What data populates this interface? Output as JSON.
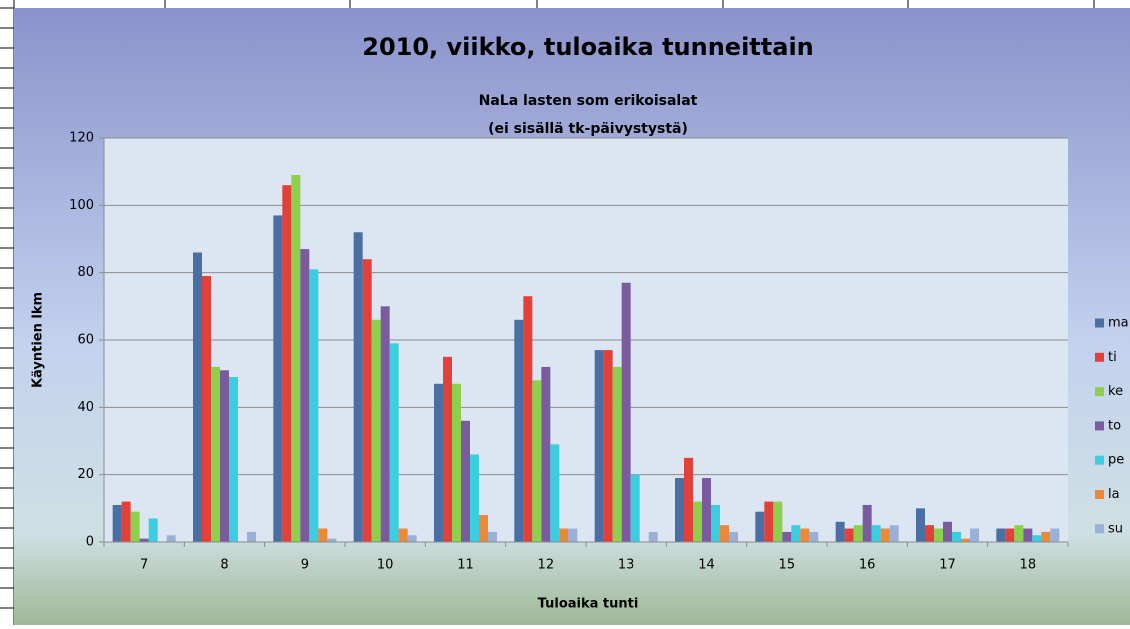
{
  "chart_data": {
    "type": "bar",
    "title": "2010, viikko, tuloaika tunneittain",
    "subtitle": [
      "NaLa lasten som erikoisalat",
      "(ei sisällä tk-päivystystä)"
    ],
    "x_label": "Tuloaika tunti",
    "y_label": "Käyntien lkm",
    "categories": [
      "7",
      "8",
      "9",
      "10",
      "11",
      "12",
      "13",
      "14",
      "15",
      "16",
      "17",
      "18"
    ],
    "series": [
      {
        "name": "ma",
        "color": "#4a6fa5",
        "values": [
          11,
          86,
          97,
          92,
          47,
          66,
          57,
          19,
          9,
          6,
          10,
          4
        ]
      },
      {
        "name": "ti",
        "color": "#e3403a",
        "values": [
          12,
          79,
          106,
          84,
          55,
          73,
          57,
          25,
          12,
          4,
          5,
          4
        ]
      },
      {
        "name": "ke",
        "color": "#8ed04e",
        "values": [
          9,
          52,
          109,
          66,
          47,
          48,
          52,
          12,
          12,
          5,
          4,
          5
        ]
      },
      {
        "name": "to",
        "color": "#7a5c9e",
        "values": [
          1,
          51,
          87,
          70,
          36,
          52,
          77,
          19,
          3,
          11,
          6,
          4
        ]
      },
      {
        "name": "pe",
        "color": "#3ccde0",
        "values": [
          7,
          49,
          81,
          59,
          26,
          29,
          20,
          11,
          5,
          5,
          3,
          2
        ]
      },
      {
        "name": "la",
        "color": "#e98a3a",
        "values": [
          0,
          0,
          4,
          4,
          8,
          4,
          0,
          5,
          4,
          4,
          1,
          3
        ]
      },
      {
        "name": "su",
        "color": "#9bb0d8",
        "values": [
          2,
          3,
          1,
          2,
          3,
          4,
          3,
          3,
          3,
          5,
          4,
          4
        ]
      }
    ],
    "ylim": [
      0,
      120
    ],
    "yticks": [
      0,
      20,
      40,
      60,
      80,
      100,
      120
    ],
    "grid": true,
    "legend": "right"
  }
}
